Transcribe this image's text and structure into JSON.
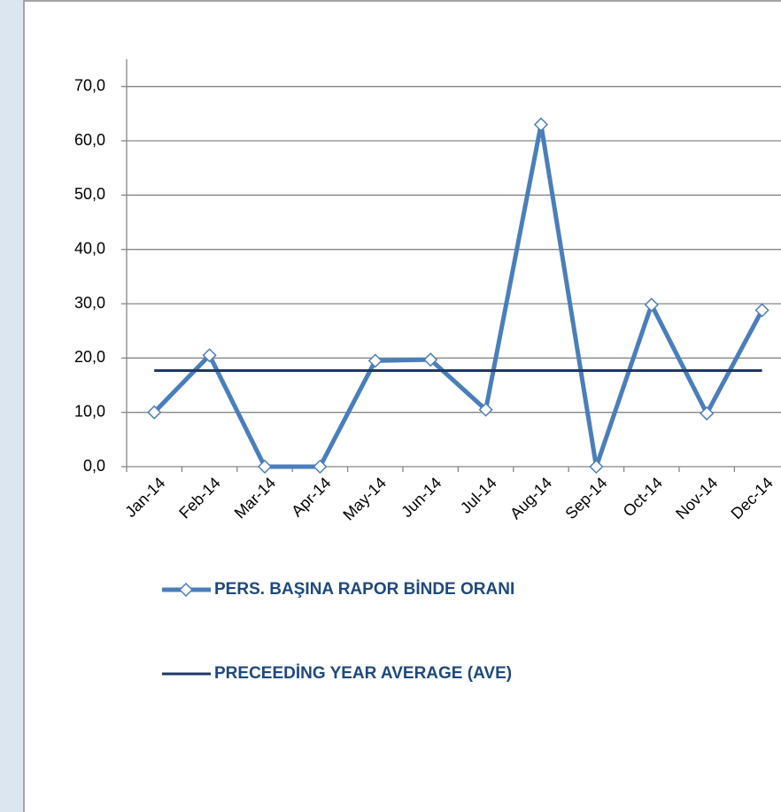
{
  "chart_data": {
    "type": "line",
    "categories": [
      "Jan-14",
      "Feb-14",
      "Mar-14",
      "Apr-14",
      "May-14",
      "Jun-14",
      "Jul-14",
      "Aug-14",
      "Sep-14",
      "Oct-14",
      "Nov-14",
      "Dec-14"
    ],
    "series": [
      {
        "name": "PERS. BAŞINA RAPOR BİNDE ORANI",
        "color": "#4a7ebb",
        "marker": "diamond",
        "values": [
          10.0,
          20.5,
          0,
          0,
          19.5,
          19.7,
          10.5,
          63.0,
          0,
          29.8,
          9.8,
          28.8
        ]
      },
      {
        "name": "PRECEEDİNG YEAR AVERAGE (AVE)",
        "color": "#1f3864",
        "values": [
          17.7,
          17.7,
          17.7,
          17.7,
          17.7,
          17.7,
          17.7,
          17.7,
          17.7,
          17.7,
          17.7,
          17.7
        ]
      }
    ],
    "ylim": [
      0,
      75
    ],
    "yticks": [
      {
        "value": 0,
        "label": "0,0"
      },
      {
        "value": 10,
        "label": "10,0"
      },
      {
        "value": 20,
        "label": "20,0"
      },
      {
        "value": 30,
        "label": "30,0"
      },
      {
        "value": 40,
        "label": "40,0"
      },
      {
        "value": 50,
        "label": "50,0"
      },
      {
        "value": 60,
        "label": "60,0"
      },
      {
        "value": 70,
        "label": "70,0"
      }
    ],
    "grid": true,
    "legend": "bottom"
  }
}
